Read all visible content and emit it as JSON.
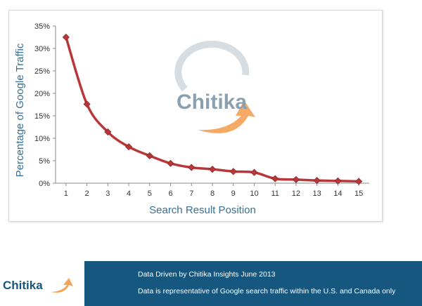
{
  "chart_data": {
    "type": "line",
    "title": "",
    "xlabel": "Search Result Position",
    "ylabel": "Percentage of Google Traffic",
    "x": [
      1,
      2,
      3,
      4,
      5,
      6,
      7,
      8,
      9,
      10,
      11,
      12,
      13,
      14,
      15
    ],
    "x_ticks": [
      "1",
      "2",
      "3",
      "4",
      "5",
      "6",
      "7",
      "8",
      "9",
      "10",
      "11",
      "12",
      "13",
      "14",
      "15"
    ],
    "y_ticks": [
      "0%",
      "5%",
      "10%",
      "15%",
      "20%",
      "25%",
      "30%",
      "35%"
    ],
    "ylim": [
      0,
      35
    ],
    "grid": false,
    "series": [
      {
        "values": [
          32.5,
          17.6,
          11.4,
          8.1,
          6.1,
          4.4,
          3.5,
          3.1,
          2.6,
          2.4,
          1.0,
          0.8,
          0.6,
          0.5,
          0.4
        ],
        "color": "#b8383a"
      }
    ],
    "colors": {
      "line": "#b8383a",
      "marker": "#b8383a",
      "axis_text": "#3a6f93",
      "tick_text": "#333333"
    }
  },
  "watermark": {
    "brand": "Chitika",
    "colors": {
      "text": "#7e96a6",
      "arc": "#f4a255",
      "ring": "#b9c6cd"
    }
  },
  "footer": {
    "logo_text": "Chitika",
    "line1": "Data Driven by Chitika Insights June 2013",
    "line2": "Data is representative of Google search traffic within the U.S. and Canada only",
    "band_color": "#16577f"
  }
}
